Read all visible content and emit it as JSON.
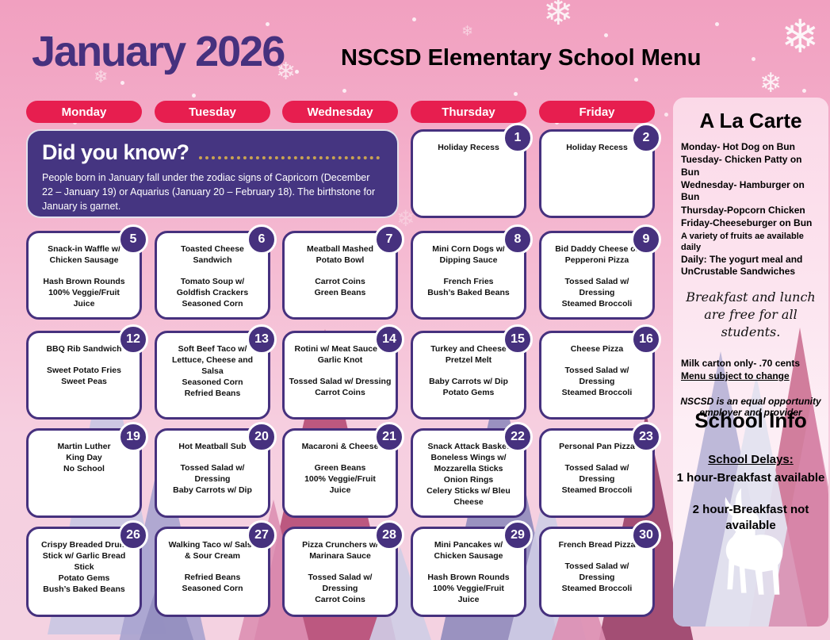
{
  "header": {
    "month_title": "January 2026",
    "menu_title": "NSCSD Elementary School Menu"
  },
  "weekdays": [
    "Monday",
    "Tuesday",
    "Wednesday",
    "Thursday",
    "Friday"
  ],
  "did_you_know": {
    "title": "Did you know?",
    "body": "People born in January fall under the zodiac signs of Capricorn (December 22 – January 19) or Aquarius (January 20 – February 18). The birthstone for January is garnet."
  },
  "calendar": {
    "cells": [
      {
        "day": "1",
        "col": 4,
        "row": 1,
        "lines": [
          "Holiday Recess"
        ]
      },
      {
        "day": "2",
        "col": 5,
        "row": 1,
        "lines": [
          "Holiday Recess"
        ]
      },
      {
        "day": "5",
        "col": 1,
        "row": 2,
        "lines": [
          "Snack-in Waffle w/",
          "Chicken Sausage",
          "",
          "Hash Brown Rounds",
          "100% Veggie/Fruit",
          "Juice"
        ]
      },
      {
        "day": "6",
        "col": 2,
        "row": 2,
        "lines": [
          "Toasted Cheese",
          "Sandwich",
          "",
          "Tomato Soup w/",
          "Goldfish Crackers",
          "Seasoned Corn"
        ]
      },
      {
        "day": "7",
        "col": 3,
        "row": 2,
        "lines": [
          "Meatball Mashed",
          "Potato Bowl",
          "",
          "Carrot Coins",
          "Green Beans"
        ]
      },
      {
        "day": "8",
        "col": 4,
        "row": 2,
        "lines": [
          "Mini Corn Dogs w/",
          "Dipping Sauce",
          "",
          "French Fries",
          "Bush’s Baked Beans"
        ]
      },
      {
        "day": "9",
        "col": 5,
        "row": 2,
        "lines": [
          "Bid Daddy Cheese or",
          "Pepperoni Pizza",
          "",
          "Tossed Salad w/",
          "Dressing",
          "Steamed Broccoli"
        ]
      },
      {
        "day": "12",
        "col": 1,
        "row": 3,
        "lines": [
          "BBQ Rib Sandwich",
          "",
          "Sweet Potato Fries",
          "Sweet Peas"
        ]
      },
      {
        "day": "13",
        "col": 2,
        "row": 3,
        "lines": [
          "Soft Beef Taco w/",
          "Lettuce, Cheese and",
          "Salsa",
          "Seasoned Corn",
          "Refried Beans"
        ]
      },
      {
        "day": "14",
        "col": 3,
        "row": 3,
        "lines": [
          "Rotini w/ Meat Sauce &",
          "Garlic Knot",
          "",
          "Tossed Salad w/ Dressing",
          "Carrot Coins"
        ]
      },
      {
        "day": "15",
        "col": 4,
        "row": 3,
        "lines": [
          "Turkey and Cheese",
          "Pretzel Melt",
          "",
          "Baby Carrots w/ Dip",
          "Potato Gems"
        ]
      },
      {
        "day": "16",
        "col": 5,
        "row": 3,
        "lines": [
          "Cheese Pizza",
          "",
          "Tossed Salad w/",
          "Dressing",
          "Steamed Broccoli"
        ]
      },
      {
        "day": "19",
        "col": 1,
        "row": 4,
        "lines": [
          "Martin Luther",
          "King Day",
          "No School"
        ]
      },
      {
        "day": "20",
        "col": 2,
        "row": 4,
        "lines": [
          "Hot Meatball Sub",
          "",
          "Tossed Salad w/",
          "Dressing",
          "Baby Carrots w/ Dip"
        ]
      },
      {
        "day": "21",
        "col": 3,
        "row": 4,
        "lines": [
          "Macaroni & Cheese",
          "",
          "Green Beans",
          "100% Veggie/Fruit",
          "Juice"
        ]
      },
      {
        "day": "22",
        "col": 4,
        "row": 4,
        "lines": [
          "Snack Attack Basket",
          "Boneless Wings w/",
          "Mozzarella Sticks",
          "Onion Rings",
          "Celery Sticks w/ Bleu",
          "Cheese"
        ]
      },
      {
        "day": "23",
        "col": 5,
        "row": 4,
        "lines": [
          "Personal Pan Pizza",
          "",
          "Tossed Salad w/",
          "Dressing",
          "Steamed Broccoli"
        ]
      },
      {
        "day": "26",
        "col": 1,
        "row": 5,
        "lines": [
          "Crispy Breaded Drum",
          "Stick w/ Garlic Bread",
          "Stick",
          "Potato Gems",
          "Bush’s Baked Beans"
        ]
      },
      {
        "day": "27",
        "col": 2,
        "row": 5,
        "lines": [
          "Walking Taco w/ Salsa",
          "& Sour Cream",
          "",
          "Refried Beans",
          "Seasoned Corn"
        ]
      },
      {
        "day": "28",
        "col": 3,
        "row": 5,
        "lines": [
          "Pizza Crunchers w/",
          "Marinara Sauce",
          "",
          "Tossed Salad w/",
          "Dressing",
          "Carrot Coins"
        ]
      },
      {
        "day": "29",
        "col": 4,
        "row": 5,
        "lines": [
          "Mini Pancakes w/",
          "Chicken Sausage",
          "",
          "Hash Brown Rounds",
          "100% Veggie/Fruit",
          "Juice"
        ]
      },
      {
        "day": "30",
        "col": 5,
        "row": 5,
        "lines": [
          "French Bread Pizza",
          "",
          "Tossed Salad w/",
          "Dressing",
          "Steamed Broccoli"
        ]
      }
    ]
  },
  "sidebar": {
    "a_la_carte": {
      "title": "A La Carte",
      "items": [
        {
          "text": "Monday- Hot Dog on Bun",
          "small": false
        },
        {
          "text": "Tuesday- Chicken Patty on Bun",
          "small": false
        },
        {
          "text": "Wednesday- Hamburger on Bun",
          "small": false
        },
        {
          "text": "Thursday-Popcorn Chicken",
          "small": false
        },
        {
          "text": "Friday-Cheeseburger on Bun",
          "small": false
        },
        {
          "text": "A variety of fruits ae available daily",
          "small": true
        },
        {
          "text": "Daily: The yogurt meal and UnCrustable Sandwiches",
          "small": false
        }
      ]
    },
    "free_note": "Breakfast and lunch are free for all students.",
    "milk_note": "Milk carton only- .70 cents",
    "menu_change_note": "Menu subject to change",
    "eeo_note": "NSCSD is an equal opportunity employer and provider",
    "school_info": {
      "title": "School Info",
      "delays_heading": "School Delays:",
      "delays": [
        "1 hour-Breakfast available",
        "2 hour-Breakfast not available"
      ]
    }
  },
  "icons": {
    "snowflake": "❄"
  },
  "colors": {
    "purple": "#46317e",
    "red": "#e71e4f",
    "pink_background": "#f3aac7",
    "gold_dots": "#c9a352",
    "white": "#ffffff"
  }
}
